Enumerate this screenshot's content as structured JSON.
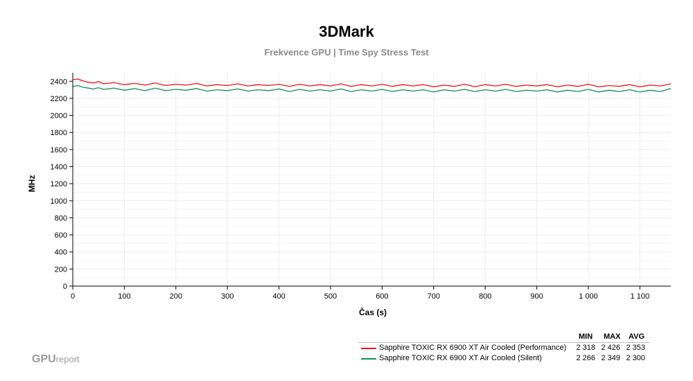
{
  "chart_data": {
    "type": "line",
    "title": "3DMark",
    "subtitle": "Frekvence GPU | Time Spy Stress Test",
    "xlabel": "Čas (s)",
    "ylabel": "MHz",
    "xlim": [
      0,
      1160
    ],
    "ylim": [
      0,
      2500
    ],
    "x_ticks": [
      0,
      100,
      200,
      300,
      400,
      500,
      600,
      700,
      800,
      900,
      1000,
      1100
    ],
    "x_tick_labels": [
      "0",
      "100",
      "200",
      "300",
      "400",
      "500",
      "600",
      "700",
      "800",
      "900",
      "1 000",
      "1 100"
    ],
    "y_ticks": [
      0,
      200,
      400,
      600,
      800,
      1000,
      1200,
      1400,
      1600,
      1800,
      2000,
      2200,
      2400
    ],
    "y_tick_labels": [
      "0",
      "200",
      "400",
      "600",
      "800",
      "1000",
      "1200",
      "1400",
      "1600",
      "1800",
      "2000",
      "2200",
      "2400"
    ],
    "grid": true,
    "legend_position": "bottom-right",
    "legend_columns": [
      "MIN",
      "MAX",
      "AVG"
    ],
    "series": [
      {
        "name": "Sapphire TOXIC RX 6900 XT Air Cooled (Performance)",
        "color": "#e8141c",
        "min": "2 318",
        "max": "2 426",
        "avg": "2 353",
        "x": [
          0,
          10,
          20,
          30,
          40,
          50,
          60,
          80,
          100,
          120,
          140,
          160,
          180,
          200,
          220,
          240,
          260,
          280,
          300,
          320,
          340,
          360,
          380,
          400,
          420,
          440,
          460,
          480,
          500,
          520,
          540,
          560,
          580,
          600,
          620,
          640,
          660,
          680,
          700,
          720,
          740,
          760,
          780,
          800,
          820,
          840,
          860,
          880,
          900,
          920,
          940,
          960,
          980,
          1000,
          1020,
          1040,
          1060,
          1080,
          1100,
          1120,
          1140,
          1160
        ],
        "values": [
          2420,
          2426,
          2405,
          2390,
          2380,
          2395,
          2370,
          2385,
          2360,
          2375,
          2355,
          2380,
          2350,
          2365,
          2355,
          2375,
          2345,
          2360,
          2350,
          2370,
          2345,
          2360,
          2350,
          2365,
          2340,
          2365,
          2345,
          2360,
          2345,
          2370,
          2340,
          2360,
          2345,
          2365,
          2340,
          2360,
          2345,
          2360,
          2335,
          2355,
          2340,
          2365,
          2335,
          2360,
          2345,
          2365,
          2340,
          2355,
          2345,
          2360,
          2335,
          2355,
          2340,
          2365,
          2335,
          2350,
          2340,
          2360,
          2335,
          2355,
          2345,
          2370
        ]
      },
      {
        "name": "Sapphire TOXIC RX 6900 XT Air Cooled (Silent)",
        "color": "#1a8a5a",
        "min": "2 266",
        "max": "2 349",
        "avg": "2 300",
        "x": [
          0,
          10,
          20,
          30,
          40,
          50,
          60,
          80,
          100,
          120,
          140,
          160,
          180,
          200,
          220,
          240,
          260,
          280,
          300,
          320,
          340,
          360,
          380,
          400,
          420,
          440,
          460,
          480,
          500,
          520,
          540,
          560,
          580,
          600,
          620,
          640,
          660,
          680,
          700,
          720,
          740,
          760,
          780,
          800,
          820,
          840,
          860,
          880,
          900,
          920,
          940,
          960,
          980,
          1000,
          1020,
          1040,
          1060,
          1080,
          1100,
          1120,
          1140,
          1160
        ],
        "values": [
          2340,
          2349,
          2330,
          2320,
          2310,
          2325,
          2305,
          2320,
          2295,
          2315,
          2290,
          2320,
          2290,
          2305,
          2295,
          2315,
          2285,
          2300,
          2290,
          2310,
          2285,
          2300,
          2290,
          2310,
          2280,
          2305,
          2285,
          2300,
          2285,
          2310,
          2280,
          2300,
          2285,
          2305,
          2280,
          2300,
          2285,
          2300,
          2275,
          2300,
          2285,
          2305,
          2280,
          2300,
          2285,
          2305,
          2280,
          2295,
          2285,
          2300,
          2275,
          2295,
          2280,
          2305,
          2275,
          2295,
          2280,
          2300,
          2275,
          2295,
          2280,
          2315
        ]
      }
    ]
  },
  "brand": {
    "bold": "GPU",
    "light": "report"
  }
}
